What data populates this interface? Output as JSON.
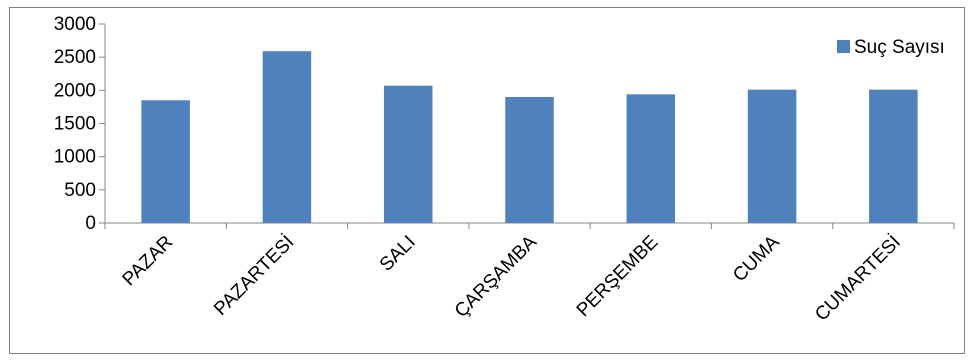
{
  "chart_data": {
    "type": "bar",
    "categories": [
      "PAZAR",
      "PAZARTESİ",
      "SALI",
      "ÇARŞAMBA",
      "PERŞEMBE",
      "CUMA",
      "CUMARTESİ"
    ],
    "series": [
      {
        "name": "Suç Sayısı",
        "values": [
          1850,
          2590,
          2070,
          1900,
          1940,
          2010,
          2010
        ],
        "color": "#4f81bd"
      }
    ],
    "title": "",
    "xlabel": "",
    "ylabel": "",
    "ylim": [
      0,
      3000
    ],
    "yticks": [
      0,
      500,
      1000,
      1500,
      2000,
      2500,
      3000
    ],
    "grid": false,
    "legend_position": "top-right"
  }
}
